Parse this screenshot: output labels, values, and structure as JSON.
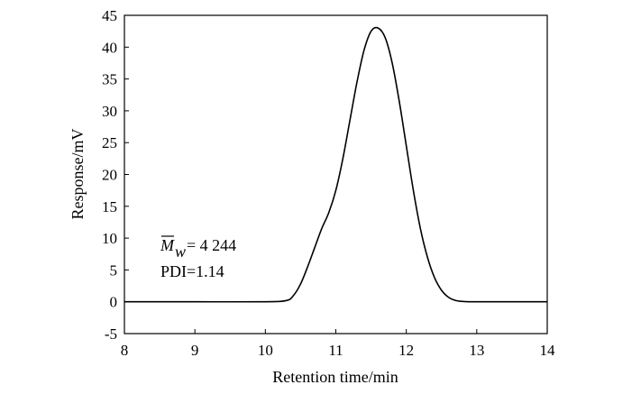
{
  "chart_data": {
    "type": "line",
    "title": "",
    "xlabel": "Retention time/min",
    "ylabel": "Response/mV",
    "xlim": [
      8,
      14
    ],
    "ylim": [
      -5,
      45
    ],
    "xticks": [
      8,
      9,
      10,
      11,
      12,
      13,
      14
    ],
    "yticks": [
      -5,
      0,
      5,
      10,
      15,
      20,
      25,
      30,
      35,
      40,
      45
    ],
    "grid": false,
    "legend": "none",
    "line_color": "#000000",
    "annotations": {
      "mw_symbol": "M",
      "mw_subscript": "w",
      "mw_value": "= 4 244",
      "pdi": "PDI=1.14"
    },
    "series": [
      {
        "x": [
          8.0,
          9.0,
          10.0,
          10.3,
          10.4,
          10.5,
          10.6,
          10.7,
          10.8,
          10.9,
          11.0,
          11.1,
          11.2,
          11.3,
          11.4,
          11.5,
          11.6,
          11.7,
          11.8,
          11.9,
          12.0,
          12.1,
          12.2,
          12.3,
          12.4,
          12.5,
          12.6,
          12.7,
          12.8,
          12.9,
          13.0,
          14.0
        ],
        "y": [
          0,
          0,
          0,
          0.2,
          1.0,
          2.8,
          5.5,
          8.5,
          11.5,
          14.0,
          17.5,
          22.5,
          28.5,
          34.5,
          39.5,
          42.5,
          43.0,
          41.5,
          37.5,
          31.5,
          24.5,
          17.5,
          11.5,
          7.0,
          3.8,
          1.8,
          0.7,
          0.2,
          0.05,
          0,
          0,
          0
        ]
      }
    ]
  }
}
